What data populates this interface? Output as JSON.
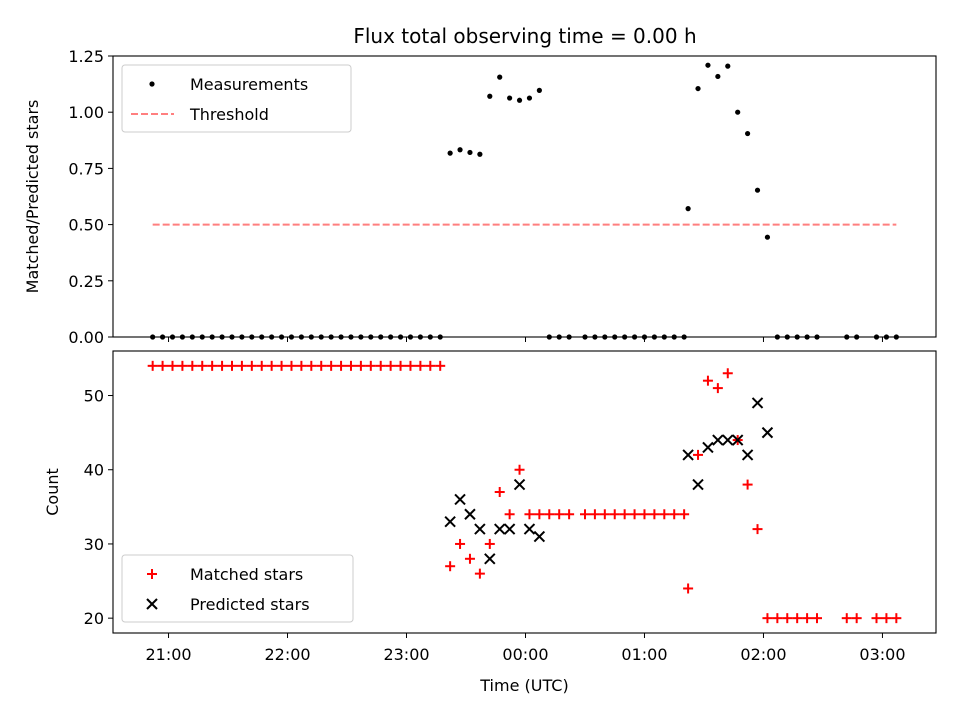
{
  "chart_data": [
    {
      "type": "scatter",
      "title": "Flux total observing time = 0.00 h",
      "xlabel": "",
      "ylabel": "Matched/Predicted stars",
      "xlim": [
        "20:32",
        "03:27"
      ],
      "ylim": [
        0,
        1.25
      ],
      "yticks": [
        "0.00",
        "0.25",
        "0.50",
        "0.75",
        "1.00",
        "1.25"
      ],
      "x_tick_positions": [
        "21:00",
        "22:00",
        "23:00",
        "00:00",
        "01:00",
        "02:00",
        "03:00"
      ],
      "grid": false,
      "legend_position": "upper-left",
      "colors": {
        "measurements": "#000000",
        "threshold": "#ff7f7f"
      },
      "series": [
        {
          "name": "Measurements",
          "style": "dots",
          "points": [
            [
              "20:52",
              0
            ],
            [
              "20:57",
              0
            ],
            [
              "21:02",
              0
            ],
            [
              "21:07",
              0
            ],
            [
              "21:12",
              0
            ],
            [
              "21:17",
              0
            ],
            [
              "21:22",
              0
            ],
            [
              "21:27",
              0
            ],
            [
              "21:32",
              0
            ],
            [
              "21:37",
              0
            ],
            [
              "21:42",
              0
            ],
            [
              "21:47",
              0
            ],
            [
              "21:52",
              0
            ],
            [
              "21:57",
              0
            ],
            [
              "22:02",
              0
            ],
            [
              "22:07",
              0
            ],
            [
              "22:12",
              0
            ],
            [
              "22:17",
              0
            ],
            [
              "22:22",
              0
            ],
            [
              "22:27",
              0
            ],
            [
              "22:32",
              0
            ],
            [
              "22:37",
              0
            ],
            [
              "22:42",
              0
            ],
            [
              "22:47",
              0
            ],
            [
              "22:52",
              0
            ],
            [
              "22:57",
              0
            ],
            [
              "23:02",
              0
            ],
            [
              "23:07",
              0
            ],
            [
              "23:12",
              0
            ],
            [
              "23:17",
              0
            ],
            [
              "23:22",
              0.818
            ],
            [
              "23:27",
              0.833
            ],
            [
              "23:32",
              0.821
            ],
            [
              "23:37",
              0.813
            ],
            [
              "23:42",
              1.071
            ],
            [
              "23:47",
              1.156
            ],
            [
              "23:52",
              1.063
            ],
            [
              "23:57",
              1.053
            ],
            [
              "00:02",
              1.063
            ],
            [
              "00:07",
              1.097
            ],
            [
              "00:12",
              0
            ],
            [
              "00:17",
              0
            ],
            [
              "00:22",
              0
            ],
            [
              "00:30",
              0
            ],
            [
              "00:35",
              0
            ],
            [
              "00:40",
              0
            ],
            [
              "00:45",
              0
            ],
            [
              "00:50",
              0
            ],
            [
              "00:55",
              0
            ],
            [
              "01:00",
              0
            ],
            [
              "01:05",
              0
            ],
            [
              "01:10",
              0
            ],
            [
              "01:15",
              0
            ],
            [
              "01:20",
              0
            ],
            [
              "01:22",
              0.571
            ],
            [
              "01:27",
              1.105
            ],
            [
              "01:32",
              1.209
            ],
            [
              "01:37",
              1.159
            ],
            [
              "01:42",
              1.205
            ],
            [
              "01:47",
              1.0
            ],
            [
              "01:52",
              0.905
            ],
            [
              "01:57",
              0.653
            ],
            [
              "02:02",
              0.444
            ],
            [
              "02:07",
              0
            ],
            [
              "02:12",
              0
            ],
            [
              "02:17",
              0
            ],
            [
              "02:22",
              0
            ],
            [
              "02:27",
              0
            ],
            [
              "02:42",
              0
            ],
            [
              "02:47",
              0
            ],
            [
              "02:57",
              0
            ],
            [
              "03:02",
              0
            ],
            [
              "03:07",
              0
            ]
          ]
        },
        {
          "name": "Threshold",
          "style": "dashed-line",
          "points": [
            [
              "20:52",
              0.5
            ],
            [
              "03:07",
              0.5
            ]
          ]
        }
      ]
    },
    {
      "type": "scatter",
      "title": "",
      "xlabel": "Time (UTC)",
      "ylabel": "Count",
      "xlim": [
        "20:32",
        "03:27"
      ],
      "ylim": [
        18,
        56
      ],
      "yticks": [
        "20",
        "30",
        "40",
        "50"
      ],
      "xticks": [
        "21:00",
        "22:00",
        "23:00",
        "00:00",
        "01:00",
        "02:00",
        "03:00"
      ],
      "grid": false,
      "legend_position": "lower-left",
      "colors": {
        "matched": "#ff0000",
        "predicted": "#000000"
      },
      "series": [
        {
          "name": "Matched stars",
          "marker": "plus",
          "points": [
            [
              "20:52",
              54
            ],
            [
              "20:57",
              54
            ],
            [
              "21:02",
              54
            ],
            [
              "21:07",
              54
            ],
            [
              "21:12",
              54
            ],
            [
              "21:17",
              54
            ],
            [
              "21:22",
              54
            ],
            [
              "21:27",
              54
            ],
            [
              "21:32",
              54
            ],
            [
              "21:37",
              54
            ],
            [
              "21:42",
              54
            ],
            [
              "21:47",
              54
            ],
            [
              "21:52",
              54
            ],
            [
              "21:57",
              54
            ],
            [
              "22:02",
              54
            ],
            [
              "22:07",
              54
            ],
            [
              "22:12",
              54
            ],
            [
              "22:17",
              54
            ],
            [
              "22:22",
              54
            ],
            [
              "22:27",
              54
            ],
            [
              "22:32",
              54
            ],
            [
              "22:37",
              54
            ],
            [
              "22:42",
              54
            ],
            [
              "22:47",
              54
            ],
            [
              "22:52",
              54
            ],
            [
              "22:57",
              54
            ],
            [
              "23:02",
              54
            ],
            [
              "23:07",
              54
            ],
            [
              "23:12",
              54
            ],
            [
              "23:17",
              54
            ],
            [
              "23:22",
              27
            ],
            [
              "23:27",
              30
            ],
            [
              "23:32",
              28
            ],
            [
              "23:37",
              26
            ],
            [
              "23:42",
              30
            ],
            [
              "23:47",
              37
            ],
            [
              "23:52",
              34
            ],
            [
              "23:57",
              40
            ],
            [
              "00:02",
              34
            ],
            [
              "00:07",
              34
            ],
            [
              "00:12",
              34
            ],
            [
              "00:17",
              34
            ],
            [
              "00:22",
              34
            ],
            [
              "00:30",
              34
            ],
            [
              "00:35",
              34
            ],
            [
              "00:40",
              34
            ],
            [
              "00:45",
              34
            ],
            [
              "00:50",
              34
            ],
            [
              "00:55",
              34
            ],
            [
              "01:00",
              34
            ],
            [
              "01:05",
              34
            ],
            [
              "01:10",
              34
            ],
            [
              "01:15",
              34
            ],
            [
              "01:20",
              34
            ],
            [
              "01:22",
              24
            ],
            [
              "01:27",
              42
            ],
            [
              "01:32",
              52
            ],
            [
              "01:37",
              51
            ],
            [
              "01:42",
              53
            ],
            [
              "01:47",
              44
            ],
            [
              "01:52",
              38
            ],
            [
              "01:57",
              32
            ],
            [
              "02:02",
              20
            ],
            [
              "02:07",
              20
            ],
            [
              "02:12",
              20
            ],
            [
              "02:17",
              20
            ],
            [
              "02:22",
              20
            ],
            [
              "02:27",
              20
            ],
            [
              "02:42",
              20
            ],
            [
              "02:47",
              20
            ],
            [
              "02:57",
              20
            ],
            [
              "03:02",
              20
            ],
            [
              "03:07",
              20
            ]
          ]
        },
        {
          "name": "Predicted stars",
          "marker": "x",
          "points": [
            [
              "23:22",
              33
            ],
            [
              "23:27",
              36
            ],
            [
              "23:32",
              34
            ],
            [
              "23:37",
              32
            ],
            [
              "23:42",
              28
            ],
            [
              "23:47",
              32
            ],
            [
              "23:52",
              32
            ],
            [
              "23:57",
              38
            ],
            [
              "00:02",
              32
            ],
            [
              "00:07",
              31
            ],
            [
              "01:22",
              42
            ],
            [
              "01:27",
              38
            ],
            [
              "01:32",
              43
            ],
            [
              "01:37",
              44
            ],
            [
              "01:42",
              44
            ],
            [
              "01:47",
              44
            ],
            [
              "01:52",
              42
            ],
            [
              "01:57",
              49
            ],
            [
              "02:02",
              45
            ]
          ]
        }
      ]
    }
  ]
}
